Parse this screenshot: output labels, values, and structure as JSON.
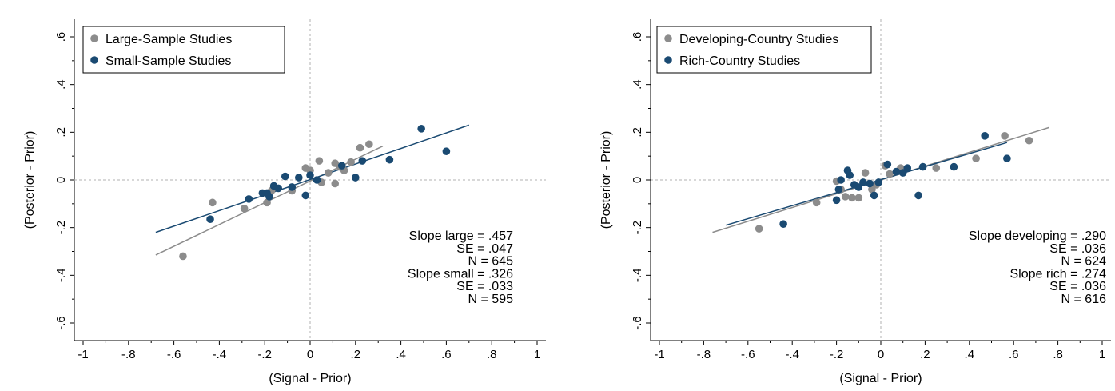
{
  "chart_data": [
    {
      "type": "scatter",
      "xlabel": "(Signal - Prior)",
      "ylabel": "(Posterior - Prior)",
      "xlim": [
        -1,
        1
      ],
      "ylim": [
        -0.6,
        0.6
      ],
      "x_ticks": [
        -1,
        -0.8,
        -0.6,
        -0.4,
        -0.2,
        0,
        0.2,
        0.4,
        0.6,
        0.8,
        1
      ],
      "x_tick_labels": [
        "-1",
        "-.8",
        "-.6",
        "-.4",
        "-.2",
        "0",
        ".2",
        ".4",
        ".6",
        ".8",
        "1"
      ],
      "y_ticks": [
        -0.6,
        -0.4,
        -0.2,
        0,
        0.2,
        0.4,
        0.6
      ],
      "y_tick_labels": [
        "-.6",
        "-.4",
        "-.2",
        "0",
        ".2",
        ".4",
        ".6"
      ],
      "reference_lines": {
        "x": 0,
        "y": 0,
        "style": "dashed"
      },
      "legend_position": "top-left",
      "series": [
        {
          "name": "Large-Sample Studies",
          "color": "#8c8c8c",
          "points": [
            [
              -0.56,
              -0.32
            ],
            [
              -0.43,
              -0.095
            ],
            [
              -0.29,
              -0.12
            ],
            [
              -0.19,
              -0.095
            ],
            [
              -0.17,
              -0.045
            ],
            [
              -0.08,
              -0.045
            ],
            [
              -0.02,
              0.05
            ],
            [
              0.0,
              0.04
            ],
            [
              0.04,
              0.08
            ],
            [
              0.05,
              -0.01
            ],
            [
              0.08,
              0.03
            ],
            [
              0.11,
              -0.015
            ],
            [
              0.11,
              0.07
            ],
            [
              0.13,
              0.055
            ],
            [
              0.15,
              0.04
            ],
            [
              0.18,
              0.075
            ],
            [
              0.22,
              0.135
            ],
            [
              0.26,
              0.15
            ]
          ],
          "fit": {
            "x": [
              -0.68,
              0.32
            ],
            "y": [
              -0.315,
              0.142
            ]
          }
        },
        {
          "name": "Small-Sample Studies",
          "color": "#1a4a72",
          "points": [
            [
              -0.44,
              -0.165
            ],
            [
              -0.27,
              -0.08
            ],
            [
              -0.21,
              -0.055
            ],
            [
              -0.19,
              -0.055
            ],
            [
              -0.18,
              -0.07
            ],
            [
              -0.16,
              -0.025
            ],
            [
              -0.14,
              -0.035
            ],
            [
              -0.11,
              0.015
            ],
            [
              -0.08,
              -0.03
            ],
            [
              -0.05,
              0.01
            ],
            [
              -0.02,
              -0.065
            ],
            [
              0.0,
              0.02
            ],
            [
              0.03,
              0.0
            ],
            [
              0.14,
              0.06
            ],
            [
              0.2,
              0.01
            ],
            [
              0.23,
              0.08
            ],
            [
              0.35,
              0.085
            ],
            [
              0.49,
              0.215
            ],
            [
              0.6,
              0.12
            ]
          ],
          "fit": {
            "x": [
              -0.68,
              0.7
            ],
            "y": [
              -0.22,
              0.23
            ]
          }
        }
      ],
      "annotation": [
        "Slope large = .457",
        "SE = .047",
        "N = 645",
        "Slope small = .326",
        "SE = .033",
        "N = 595"
      ]
    },
    {
      "type": "scatter",
      "xlabel": "(Signal - Prior)",
      "ylabel": "(Posterior - Prior)",
      "xlim": [
        -1,
        1
      ],
      "ylim": [
        -0.6,
        0.6
      ],
      "x_ticks": [
        -1,
        -0.8,
        -0.6,
        -0.4,
        -0.2,
        0,
        0.2,
        0.4,
        0.6,
        0.8,
        1
      ],
      "x_tick_labels": [
        "-1",
        "-.8",
        "-.6",
        "-.4",
        "-.2",
        "0",
        ".2",
        ".4",
        ".6",
        ".8",
        "1"
      ],
      "y_ticks": [
        -0.6,
        -0.4,
        -0.2,
        0,
        0.2,
        0.4,
        0.6
      ],
      "y_tick_labels": [
        "-.6",
        "-.4",
        "-.2",
        "0",
        ".2",
        ".4",
        ".6"
      ],
      "reference_lines": {
        "x": 0,
        "y": 0,
        "style": "dashed"
      },
      "legend_position": "top-left",
      "series": [
        {
          "name": "Developing-Country Studies",
          "color": "#8c8c8c",
          "points": [
            [
              -0.55,
              -0.205
            ],
            [
              -0.29,
              -0.095
            ],
            [
              -0.2,
              -0.005
            ],
            [
              -0.18,
              -0.04
            ],
            [
              -0.16,
              -0.07
            ],
            [
              -0.13,
              -0.075
            ],
            [
              -0.1,
              -0.075
            ],
            [
              -0.07,
              0.03
            ],
            [
              -0.04,
              -0.04
            ],
            [
              -0.02,
              -0.02
            ],
            [
              0.02,
              0.06
            ],
            [
              0.04,
              0.025
            ],
            [
              0.09,
              0.05
            ],
            [
              0.25,
              0.05
            ],
            [
              0.43,
              0.09
            ],
            [
              0.56,
              0.185
            ],
            [
              0.67,
              0.165
            ]
          ],
          "fit": {
            "x": [
              -0.76,
              0.76
            ],
            "y": [
              -0.22,
              0.22
            ]
          }
        },
        {
          "name": "Rich-Country Studies",
          "color": "#1a4a72",
          "points": [
            [
              -0.44,
              -0.185
            ],
            [
              -0.2,
              -0.085
            ],
            [
              -0.19,
              -0.04
            ],
            [
              -0.18,
              0.0
            ],
            [
              -0.15,
              0.04
            ],
            [
              -0.14,
              0.02
            ],
            [
              -0.12,
              -0.02
            ],
            [
              -0.1,
              -0.03
            ],
            [
              -0.08,
              -0.01
            ],
            [
              -0.05,
              -0.015
            ],
            [
              -0.03,
              -0.065
            ],
            [
              -0.01,
              -0.01
            ],
            [
              0.03,
              0.065
            ],
            [
              0.07,
              0.035
            ],
            [
              0.1,
              0.03
            ],
            [
              0.12,
              0.05
            ],
            [
              0.17,
              -0.065
            ],
            [
              0.19,
              0.055
            ],
            [
              0.33,
              0.055
            ],
            [
              0.47,
              0.185
            ],
            [
              0.57,
              0.09
            ]
          ],
          "fit": {
            "x": [
              -0.7,
              0.57
            ],
            "y": [
              -0.19,
              0.157
            ]
          }
        }
      ],
      "annotation": [
        "Slope developing = .290",
        "SE = .036",
        "N = 624",
        "Slope rich = .274",
        "SE = .036",
        "N = 616"
      ]
    }
  ]
}
